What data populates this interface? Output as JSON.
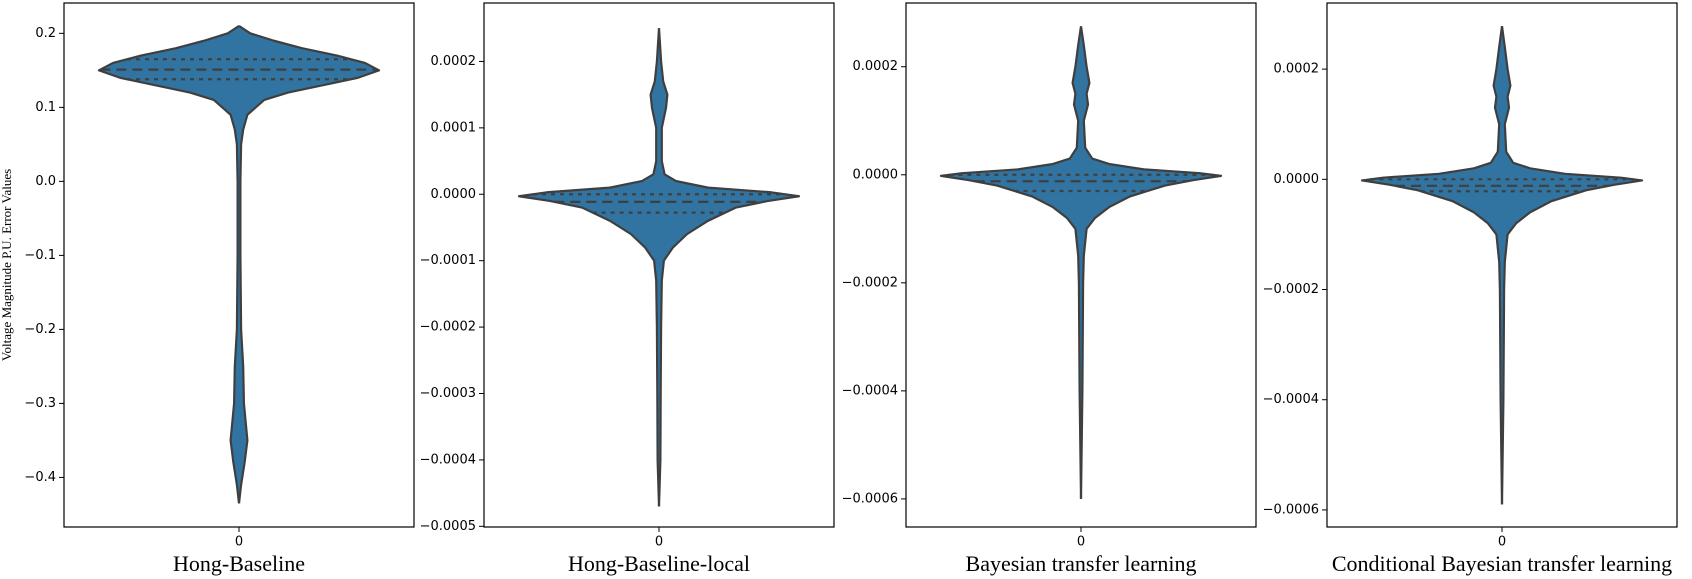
{
  "chart_data": [
    {
      "type": "violin",
      "xlabel": "Hong-Baseline",
      "ylabel": "Voltage Magnitude P.U. Error Values",
      "categories": [
        "0"
      ],
      "color": "#3274a1",
      "ylim": [
        -0.467,
        0.241
      ],
      "yticks": [
        {
          "value": -0.4,
          "label": "−0.4"
        },
        {
          "value": -0.3,
          "label": "−0.3"
        },
        {
          "value": -0.2,
          "label": "−0.2"
        },
        {
          "value": -0.1,
          "label": "−0.1"
        },
        {
          "value": 0,
          "label": "0.0"
        },
        {
          "value": 0.1,
          "label": "0.1"
        },
        {
          "value": 0.2,
          "label": "0.2"
        }
      ],
      "profile_y": [
        0.21,
        0.2,
        0.19,
        0.18,
        0.17,
        0.16,
        0.15,
        0.14,
        0.13,
        0.12,
        0.11,
        0.1,
        0.09,
        0.07,
        0.05,
        0.0,
        -0.1,
        -0.2,
        -0.25,
        -0.3,
        -0.35,
        -0.38,
        -0.41,
        -0.435
      ],
      "density": [
        0,
        0.08,
        0.25,
        0.45,
        0.7,
        0.9,
        1.0,
        0.85,
        0.6,
        0.35,
        0.18,
        0.12,
        0.06,
        0.03,
        0.015,
        0.01,
        0.01,
        0.015,
        0.03,
        0.035,
        0.06,
        0.04,
        0.015,
        0
      ],
      "quartiles": [
        0.138,
        0.151,
        0.165
      ]
    },
    {
      "type": "violin",
      "xlabel": "Hong-Baseline-local",
      "categories": [
        "0"
      ],
      "color": "#3274a1",
      "ylim": [
        -0.000501,
        0.000288
      ],
      "yticks": [
        {
          "value": -0.0005,
          "label": "−0.0005"
        },
        {
          "value": -0.0004,
          "label": "−0.0004"
        },
        {
          "value": -0.0003,
          "label": "−0.0003"
        },
        {
          "value": -0.0002,
          "label": "−0.0002"
        },
        {
          "value": -0.0001,
          "label": "−0.0001"
        },
        {
          "value": 0,
          "label": "0.0000"
        },
        {
          "value": 0.0001,
          "label": "0.0001"
        },
        {
          "value": 0.0002,
          "label": "0.0002"
        }
      ],
      "profile_y": [
        0.00025,
        0.0002,
        0.00017,
        0.00015,
        0.00013,
        0.0001,
        5e-05,
        3e-05,
        2e-05,
        1e-05,
        3e-06,
        -3e-06,
        -1e-05,
        -2e-05,
        -4e-05,
        -6e-05,
        -8e-05,
        -0.0001,
        -0.00013,
        -0.0002,
        -0.0003,
        -0.0004,
        -0.00047
      ],
      "density": [
        0,
        0.015,
        0.03,
        0.06,
        0.05,
        0.02,
        0.02,
        0.04,
        0.12,
        0.35,
        0.8,
        1.0,
        0.78,
        0.55,
        0.35,
        0.2,
        0.1,
        0.035,
        0.02,
        0.015,
        0.012,
        0.01,
        0
      ],
      "quartiles": [
        -2.76e-05,
        -1.14e-05,
        0
      ]
    },
    {
      "type": "violin",
      "xlabel": "Bayesian transfer learning",
      "categories": [
        "0"
      ],
      "color": "#3274a1",
      "ylim": [
        -0.000652,
        0.000318
      ],
      "yticks": [
        {
          "value": -0.0006,
          "label": "−0.0006"
        },
        {
          "value": -0.0004,
          "label": "−0.0004"
        },
        {
          "value": -0.0002,
          "label": "−0.0002"
        },
        {
          "value": 0,
          "label": "0.0000"
        },
        {
          "value": 0.0002,
          "label": "0.0002"
        }
      ],
      "profile_y": [
        0.000275,
        0.00024,
        0.0002,
        0.00017,
        0.00015,
        0.00013,
        0.0001,
        5e-05,
        3e-05,
        2e-05,
        1e-05,
        3e-06,
        -2e-06,
        -1e-05,
        -2e-05,
        -4e-05,
        -6e-05,
        -8e-05,
        -0.0001,
        -0.00015,
        -0.0002,
        -0.0004,
        -0.0006
      ],
      "density": [
        0,
        0.02,
        0.04,
        0.06,
        0.04,
        0.05,
        0.02,
        0.03,
        0.08,
        0.2,
        0.45,
        0.85,
        1.0,
        0.8,
        0.6,
        0.35,
        0.2,
        0.1,
        0.04,
        0.02,
        0.015,
        0.01,
        0
      ],
      "quartiles": [
        -3e-05,
        -1.2e-05,
        0
      ]
    },
    {
      "type": "violin",
      "xlabel": "Conditional Bayesian transfer learning",
      "categories": [
        "0"
      ],
      "color": "#3274a1",
      "ylim": [
        -0.000631,
        0.00032
      ],
      "yticks": [
        {
          "value": -0.0006,
          "label": "−0.0006"
        },
        {
          "value": -0.0004,
          "label": "−0.0004"
        },
        {
          "value": -0.0002,
          "label": "−0.0002"
        },
        {
          "value": 0,
          "label": "0.0000"
        },
        {
          "value": 0.0002,
          "label": "0.0002"
        }
      ],
      "profile_y": [
        0.000278,
        0.00024,
        0.0002,
        0.00017,
        0.00015,
        0.00013,
        0.0001,
        5e-05,
        3e-05,
        2e-05,
        1e-05,
        3e-06,
        -2e-06,
        -1e-05,
        -2e-05,
        -4e-05,
        -6e-05,
        -8e-05,
        -0.0001,
        -0.00015,
        -0.0002,
        -0.0004,
        -0.00059
      ],
      "density": [
        0,
        0.02,
        0.04,
        0.06,
        0.04,
        0.05,
        0.02,
        0.03,
        0.08,
        0.2,
        0.45,
        0.85,
        1.0,
        0.8,
        0.6,
        0.35,
        0.2,
        0.1,
        0.04,
        0.02,
        0.015,
        0.01,
        0
      ],
      "quartiles": [
        -2.16e-05,
        -1.18e-05,
        0
      ]
    }
  ]
}
